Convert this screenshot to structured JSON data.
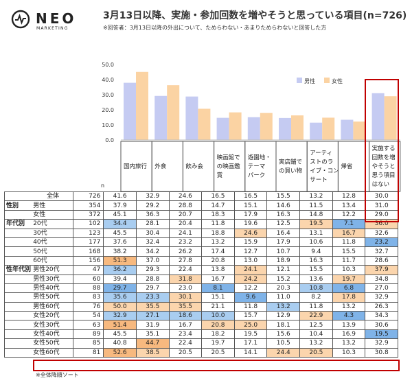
{
  "logo": {
    "name": "NEO",
    "sub": "MARKETING"
  },
  "title": "3月13日以降、実施・参加回数を増やそうと思っている項目(n=726)",
  "subtitle": "※回答者：3月13日以降の外出について、ためらわない・あまりためらわないと回答した方",
  "footnote": "※全体降順ソート",
  "colors": {
    "male": "#c5cbf2",
    "female": "#fbd3a3",
    "red": "#c00000",
    "blue_hi": "#7fb3e8",
    "blue_mid": "#a9cdf0",
    "orange_hi": "#f7b97f",
    "orange_mid": "#fbd5ad"
  },
  "chart_data": {
    "type": "bar",
    "categories": [
      "国内旅行",
      "外食",
      "飲み会",
      "映画館での映画鑑賞",
      "遊園地・テーマパーク",
      "実店舗での買い物",
      "アーティストのライブ・コンサート",
      "帰省",
      "実施する回数を増やそうと思う項目はない"
    ],
    "category_lines": [
      [
        "国内旅行"
      ],
      [
        "外食"
      ],
      [
        "飲み会"
      ],
      [
        "映画館で",
        "の映画鑑",
        "賞"
      ],
      [
        "遊園地・",
        "テーマ",
        "パーク"
      ],
      [
        "実店舗で",
        "の買い物"
      ],
      [
        "アーティ",
        "ストのラ",
        "イブ・コン",
        "サート"
      ],
      [
        "帰省"
      ],
      [
        "実施する",
        "回数を増",
        "やそうと",
        "思う項目",
        "はない"
      ]
    ],
    "series": [
      {
        "name": "男性",
        "values": [
          37.9,
          29.2,
          28.8,
          14.7,
          15.1,
          14.6,
          11.5,
          13.4,
          31.0
        ]
      },
      {
        "name": "女性",
        "values": [
          45.1,
          36.3,
          20.7,
          18.3,
          17.9,
          16.3,
          14.8,
          12.2,
          29.0
        ]
      }
    ],
    "ylim": [
      0,
      50
    ],
    "yticks": [
      "50.0",
      "40.0",
      "30.0",
      "20.0",
      "10.0",
      "0.0"
    ],
    "legend_position": "top-right",
    "n_label": "n",
    "table": {
      "rows": [
        {
          "g": "",
          "l": "全体",
          "n": "726",
          "v": [
            "41.6",
            "32.9",
            "24.6",
            "16.5",
            "16.5",
            "15.5",
            "13.2",
            "12.8",
            "30.0"
          ]
        },
        {
          "g": "性別",
          "l": "男性",
          "n": "354",
          "v": [
            "37.9",
            "29.2",
            "28.8",
            "14.7",
            "15.1",
            "14.6",
            "11.5",
            "13.4",
            "31.0"
          ]
        },
        {
          "g": "",
          "l": "女性",
          "n": "372",
          "v": [
            "45.1",
            "36.3",
            "20.7",
            "18.3",
            "17.9",
            "16.3",
            "14.8",
            "12.2",
            "29.0"
          ]
        },
        {
          "g": "年代別",
          "l": "20代",
          "n": "102",
          "v": [
            "34.4",
            "28.1",
            "20.4",
            "11.8",
            "19.6",
            "12.5",
            "19.5",
            "7.1",
            "36.0"
          ]
        },
        {
          "g": "",
          "l": "30代",
          "n": "123",
          "v": [
            "45.5",
            "30.4",
            "24.1",
            "18.8",
            "24.6",
            "16.4",
            "13.1",
            "16.7",
            "32.6"
          ]
        },
        {
          "g": "",
          "l": "40代",
          "n": "177",
          "v": [
            "37.6",
            "32.4",
            "23.2",
            "13.2",
            "15.9",
            "17.9",
            "10.6",
            "11.8",
            "23.2"
          ]
        },
        {
          "g": "",
          "l": "50代",
          "n": "168",
          "v": [
            "38.2",
            "34.2",
            "26.2",
            "17.4",
            "12.7",
            "10.7",
            "9.4",
            "15.5",
            "32.7"
          ]
        },
        {
          "g": "",
          "l": "60代",
          "n": "156",
          "v": [
            "51.3",
            "37.0",
            "27.8",
            "20.8",
            "13.0",
            "18.9",
            "16.3",
            "11.7",
            "28.6"
          ]
        },
        {
          "g": "性年代別",
          "l": "男性20代",
          "n": "47",
          "v": [
            "36.2",
            "29.3",
            "22.4",
            "13.8",
            "24.1",
            "12.1",
            "15.5",
            "10.3",
            "37.9"
          ]
        },
        {
          "g": "",
          "l": "男性30代",
          "n": "60",
          "v": [
            "39.4",
            "28.8",
            "31.8",
            "16.7",
            "24.2",
            "15.2",
            "13.6",
            "19.7",
            "34.8"
          ]
        },
        {
          "g": "",
          "l": "男性40代",
          "n": "88",
          "v": [
            "29.7",
            "29.7",
            "23.0",
            "8.1",
            "12.2",
            "20.3",
            "10.8",
            "6.8",
            "27.0"
          ]
        },
        {
          "g": "",
          "l": "男性50代",
          "n": "83",
          "v": [
            "35.6",
            "23.3",
            "30.1",
            "15.1",
            "9.6",
            "11.0",
            "8.2",
            "17.8",
            "32.9"
          ]
        },
        {
          "g": "",
          "l": "男性60代",
          "n": "76",
          "v": [
            "50.0",
            "35.5",
            "35.5",
            "21.1",
            "11.8",
            "13.2",
            "11.8",
            "13.2",
            "26.3"
          ]
        },
        {
          "g": "",
          "l": "女性20代",
          "n": "54",
          "v": [
            "32.9",
            "27.1",
            "18.6",
            "10.0",
            "15.7",
            "12.9",
            "22.9",
            "4.3",
            "34.3"
          ]
        },
        {
          "g": "",
          "l": "女性30代",
          "n": "63",
          "v": [
            "51.4",
            "31.9",
            "16.7",
            "20.8",
            "25.0",
            "18.1",
            "12.5",
            "13.9",
            "30.6"
          ]
        },
        {
          "g": "",
          "l": "女性40代",
          "n": "89",
          "v": [
            "45.5",
            "35.1",
            "23.4",
            "18.2",
            "19.5",
            "15.6",
            "10.4",
            "16.9",
            "19.5"
          ]
        },
        {
          "g": "",
          "l": "女性50代",
          "n": "85",
          "v": [
            "40.8",
            "44.7",
            "22.4",
            "19.7",
            "17.1",
            "10.5",
            "13.2",
            "13.2",
            "32.9"
          ]
        },
        {
          "g": "",
          "l": "女性60代",
          "n": "81",
          "v": [
            "52.6",
            "38.5",
            "20.5",
            "20.5",
            "14.1",
            "24.4",
            "20.5",
            "10.3",
            "30.8"
          ]
        }
      ],
      "highlights": {
        "3": {
          "0": "b2",
          "6": "o2",
          "7": "b1",
          "8": "o2"
        },
        "4": {
          "4": "o2",
          "7": "o2"
        },
        "5": {
          "8": "b1"
        },
        "7": {
          "0": "o1"
        },
        "8": {
          "0": "b2",
          "4": "o2",
          "8": "o2"
        },
        "9": {
          "2": "o2",
          "4": "o2",
          "7": "o2"
        },
        "10": {
          "0": "b1",
          "3": "b1",
          "6": "b2",
          "7": "b1"
        },
        "11": {
          "0": "b2",
          "1": "b2",
          "2": "o2",
          "4": "b1",
          "7": "o2"
        },
        "12": {
          "0": "o2",
          "1": "o2",
          "2": "o2",
          "5": "b2"
        },
        "13": {
          "0": "b2",
          "1": "b2",
          "2": "b2",
          "3": "b2",
          "6": "o2",
          "7": "b1"
        },
        "14": {
          "0": "o1",
          "3": "o2",
          "4": "o2"
        },
        "15": {
          "8": "b1"
        },
        "16": {
          "1": "o1"
        },
        "17": {
          "0": "o1",
          "1": "o2",
          "5": "o2",
          "6": "o2"
        }
      }
    }
  }
}
